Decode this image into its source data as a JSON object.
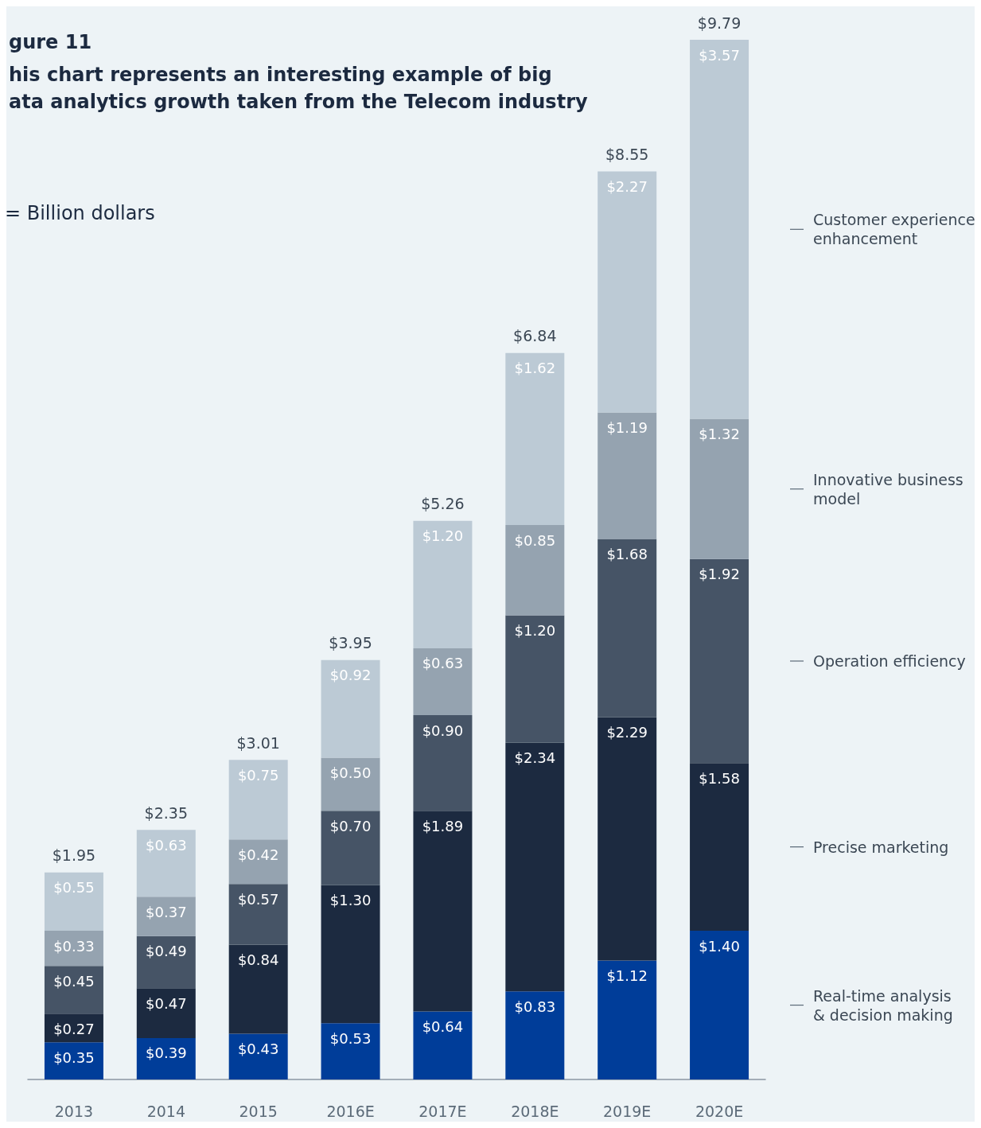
{
  "chart_data": {
    "type": "bar",
    "stacked": true,
    "title": "gure 11",
    "subtitle": "his chart represents an interesting example of big\nata analytics growth taken from the Telecom industry",
    "annotations": [
      "= Billion dollars"
    ],
    "categories": [
      "2013",
      "2014",
      "2015",
      "2016E",
      "2017E",
      "2018E",
      "2019E",
      "2020E"
    ],
    "series": [
      {
        "name": "Real-time analysis\n& decision making",
        "color": "#003d99",
        "values": [
          0.35,
          0.39,
          0.43,
          0.53,
          0.64,
          0.83,
          1.12,
          1.4
        ],
        "value_labels": [
          "$0.35",
          "$0.39",
          "$0.43",
          "$0.53",
          "$0.64",
          "$0.83",
          "$1.12",
          "$1.40"
        ]
      },
      {
        "name": "Precise marketing",
        "color": "#1c2a40",
        "values": [
          0.27,
          0.47,
          0.84,
          1.3,
          1.89,
          2.34,
          2.29,
          1.58
        ],
        "value_labels": [
          "$0.27",
          "$0.47",
          "$0.84",
          "$1.30",
          "$1.89",
          "$2.34",
          "$2.29",
          "$1.58"
        ]
      },
      {
        "name": "Operation efficiency",
        "color": "#465466",
        "values": [
          0.45,
          0.49,
          0.57,
          0.7,
          0.9,
          1.2,
          1.68,
          1.92
        ],
        "value_labels": [
          "$0.45",
          "$0.49",
          "$0.57",
          "$0.70",
          "$0.90",
          "$1.20",
          "$1.68",
          "$1.92"
        ]
      },
      {
        "name": "Innovative business\nmodel",
        "color": "#95a3b0",
        "values": [
          0.33,
          0.37,
          0.42,
          0.5,
          0.63,
          0.85,
          1.19,
          1.32
        ],
        "value_labels": [
          "$0.33",
          "$0.37",
          "$0.42",
          "$0.50",
          "$0.63",
          "$0.85",
          "$1.19",
          "$1.32"
        ]
      },
      {
        "name": "Customer experience\nenhancement",
        "color": "#bccad5",
        "values": [
          0.55,
          0.63,
          0.75,
          0.92,
          1.2,
          1.62,
          2.27,
          3.57
        ],
        "value_labels": [
          "$0.55",
          "$0.63",
          "$0.75",
          "$0.92",
          "$1.20",
          "$1.62",
          "$2.27",
          "$3.57"
        ]
      }
    ],
    "totals": [
      "$1.95",
      "$2.35",
      "$3.01",
      "$3.95",
      "$5.26",
      "$6.84",
      "$8.55",
      "$9.79"
    ],
    "legend": "right"
  }
}
